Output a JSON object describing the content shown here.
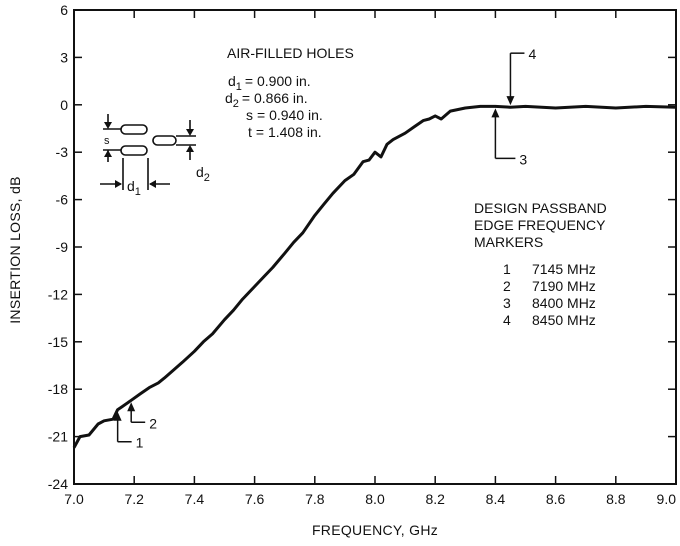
{
  "chart_data": {
    "type": "line",
    "xlabel": "FREQUENCY, GHz",
    "ylabel": "INSERTION LOSS, dB",
    "xlim": [
      7.0,
      9.0
    ],
    "ylim": [
      -24,
      6
    ],
    "xticks": [
      "7.0",
      "7.2",
      "7.4",
      "7.6",
      "7.8",
      "8.0",
      "8.2",
      "8.4",
      "8.6",
      "8.8",
      "9.0"
    ],
    "yticks": [
      "6",
      "3",
      "0",
      "-3",
      "-6",
      "-9",
      "-12",
      "-15",
      "-18",
      "-21",
      "-24"
    ],
    "grid": false,
    "series": [
      {
        "x": [
          7.0,
          7.02,
          7.05,
          7.08,
          7.1,
          7.13,
          7.145,
          7.16,
          7.19,
          7.22,
          7.25,
          7.28,
          7.3,
          7.33,
          7.36,
          7.4,
          7.43,
          7.46,
          7.5,
          7.53,
          7.56,
          7.6,
          7.63,
          7.66,
          7.7,
          7.73,
          7.76,
          7.8,
          7.83,
          7.86,
          7.9,
          7.93,
          7.96,
          7.98,
          8.0,
          8.02,
          8.04,
          8.06,
          8.1,
          8.13,
          8.16,
          8.18,
          8.2,
          8.22,
          8.25,
          8.3,
          8.35,
          8.4,
          8.45,
          8.5,
          8.6,
          8.7,
          8.8,
          8.9,
          9.0
        ],
        "y": [
          -21.7,
          -21.0,
          -20.9,
          -20.2,
          -20.0,
          -19.9,
          -19.3,
          -19.1,
          -18.7,
          -18.3,
          -17.9,
          -17.6,
          -17.3,
          -16.8,
          -16.3,
          -15.6,
          -15.0,
          -14.5,
          -13.6,
          -13.0,
          -12.3,
          -11.5,
          -10.9,
          -10.3,
          -9.4,
          -8.7,
          -8.1,
          -7.0,
          -6.3,
          -5.6,
          -4.8,
          -4.4,
          -3.6,
          -3.5,
          -3.0,
          -3.3,
          -2.5,
          -2.2,
          -1.8,
          -1.4,
          -1.0,
          -0.9,
          -0.7,
          -0.9,
          -0.4,
          -0.2,
          -0.1,
          -0.1,
          -0.15,
          -0.1,
          -0.2,
          -0.1,
          -0.2,
          -0.1,
          -0.15
        ]
      }
    ],
    "markers": [
      {
        "id": "1",
        "x": 7.145
      },
      {
        "id": "2",
        "x": 7.19
      },
      {
        "id": "3",
        "x": 8.4
      },
      {
        "id": "4",
        "x": 8.45
      }
    ]
  },
  "annotations": {
    "holes_title": "AIR-FILLED HOLES",
    "params": [
      {
        "sym": "d",
        "sub": "1",
        "val": "= 0.900 in."
      },
      {
        "sym": "d",
        "sub": "2",
        "val": "= 0.866 in."
      },
      {
        "sym": "s",
        "sub": "",
        "val": "= 0.940 in."
      },
      {
        "sym": "t",
        "sub": "",
        "val": "= 1.408 in."
      }
    ],
    "diagram": {
      "s": "s",
      "d1": "d",
      "d1_sub": "1",
      "d2": "d",
      "d2_sub": "2"
    },
    "design_lines": [
      "DESIGN PASSBAND",
      "EDGE FREQUENCY",
      "MARKERS"
    ],
    "design_markers": [
      {
        "num": "1",
        "freq": "7145 MHz"
      },
      {
        "num": "2",
        "freq": "7190 MHz"
      },
      {
        "num": "3",
        "freq": "8400 MHz"
      },
      {
        "num": "4",
        "freq": "8450 MHz"
      }
    ]
  }
}
